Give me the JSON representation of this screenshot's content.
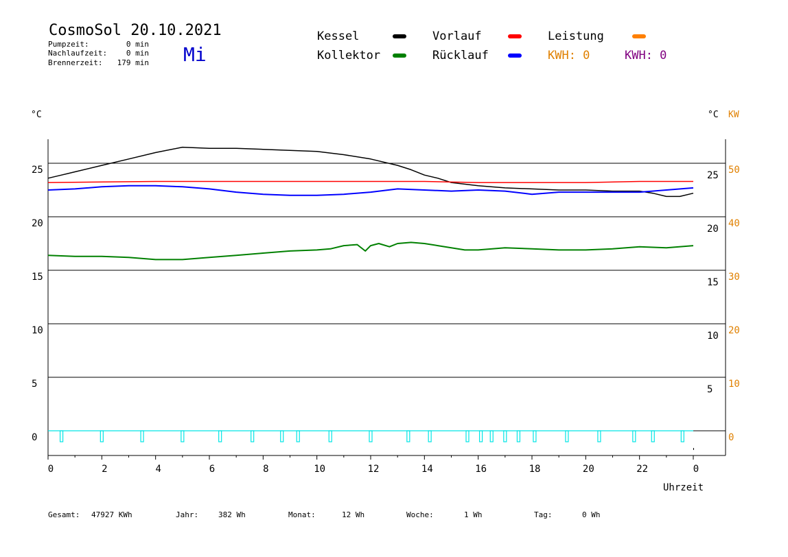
{
  "header": {
    "title": "CosmoSol 20.10.2021",
    "weekday": "Mi",
    "stats": [
      {
        "label": "Pumpzeit:",
        "value": "0 min"
      },
      {
        "label": "Nachlaufzeit:",
        "value": "0 min"
      },
      {
        "label": "Brennerzeit:",
        "value": "179 min"
      }
    ]
  },
  "legend": {
    "kessel": "Kessel",
    "vorlauf": "Vorlauf",
    "leistung": "Leistung",
    "kollektor": "Kollektor",
    "ruecklauf": "Rücklauf",
    "kwh_orange": "KWH: 0",
    "kwh_purple": "KWH: 0"
  },
  "colors": {
    "kessel": "#000000",
    "vorlauf": "#ff0000",
    "leistung": "#ff8000",
    "kollektor": "#008000",
    "ruecklauf": "#0000ff",
    "pump": "#00e5e5",
    "kwh_purple": "#800080",
    "right_kw": "#e08000"
  },
  "axes": {
    "left_unit": "°C",
    "right_unit_c": "°C",
    "right_unit_kw": "KW",
    "x_label": "Uhrzeit"
  },
  "footer": [
    {
      "label": "Gesamt:",
      "value": "47927 KWh"
    },
    {
      "label": "Jahr:",
      "value": "382 Wh"
    },
    {
      "label": "Monat:",
      "value": "12 Wh"
    },
    {
      "label": "Woche:",
      "value": "1 Wh"
    },
    {
      "label": "Tag:",
      "value": "0 Wh"
    }
  ],
  "chart_data": {
    "type": "line",
    "x_ticks": [
      "0",
      "2",
      "4",
      "6",
      "8",
      "10",
      "12",
      "14",
      "16",
      "18",
      "20",
      "22",
      "0"
    ],
    "x_range_hours": [
      0,
      24
    ],
    "y_left_ticks": [
      0,
      5,
      10,
      15,
      20,
      25
    ],
    "y_right_c_ticks": [
      5,
      10,
      15,
      20,
      25
    ],
    "y_right_kw_ticks": [
      0,
      10,
      20,
      30,
      40,
      50
    ],
    "ylim": [
      -2,
      27
    ],
    "grid": true,
    "series": [
      {
        "name": "Kessel",
        "key": "kessel",
        "x": [
          0,
          0.5,
          1,
          2,
          3,
          4,
          5,
          6,
          7,
          8,
          9,
          10,
          11,
          12,
          13,
          13.5,
          14,
          14.5,
          15,
          16,
          17,
          18,
          19,
          20,
          21,
          22,
          22.5,
          23,
          23.5,
          24
        ],
        "y": [
          23.6,
          23.9,
          24.2,
          24.8,
          25.4,
          26.0,
          26.5,
          26.4,
          26.4,
          26.3,
          26.2,
          26.1,
          25.8,
          25.4,
          24.8,
          24.4,
          23.9,
          23.6,
          23.2,
          22.9,
          22.7,
          22.6,
          22.5,
          22.5,
          22.4,
          22.4,
          22.2,
          21.9,
          21.9,
          22.2
        ]
      },
      {
        "name": "Vorlauf",
        "key": "vorlauf",
        "x": [
          0,
          4,
          8,
          12,
          14,
          16,
          18,
          20,
          22,
          24
        ],
        "y": [
          23.2,
          23.3,
          23.3,
          23.3,
          23.3,
          23.2,
          23.2,
          23.2,
          23.3,
          23.3
        ]
      },
      {
        "name": "Rücklauf",
        "key": "ruecklauf",
        "x": [
          0,
          1,
          2,
          3,
          4,
          5,
          6,
          7,
          8,
          9,
          10,
          11,
          12,
          13,
          14,
          15,
          16,
          17,
          18,
          19,
          20,
          21,
          22,
          23,
          24
        ],
        "y": [
          22.5,
          22.6,
          22.8,
          22.9,
          22.9,
          22.8,
          22.6,
          22.3,
          22.1,
          22.0,
          22.0,
          22.1,
          22.3,
          22.6,
          22.5,
          22.4,
          22.5,
          22.4,
          22.1,
          22.3,
          22.3,
          22.3,
          22.3,
          22.5,
          22.7
        ]
      },
      {
        "name": "Kollektor",
        "key": "kollektor",
        "x": [
          0,
          1,
          2,
          3,
          4,
          5,
          6,
          7,
          8,
          9,
          10,
          10.5,
          11,
          11.5,
          11.8,
          12,
          12.3,
          12.7,
          13,
          13.5,
          14,
          14.5,
          15,
          15.5,
          16,
          17,
          18,
          19,
          20,
          21,
          22,
          23,
          24
        ],
        "y": [
          16.4,
          16.3,
          16.3,
          16.2,
          16.0,
          16.0,
          16.2,
          16.4,
          16.6,
          16.8,
          16.9,
          17.0,
          17.3,
          17.4,
          16.8,
          17.3,
          17.5,
          17.2,
          17.5,
          17.6,
          17.5,
          17.3,
          17.1,
          16.9,
          16.9,
          17.1,
          17.0,
          16.9,
          16.9,
          17.0,
          17.2,
          17.1,
          17.3
        ]
      },
      {
        "name": "Pumpe",
        "key": "pump",
        "pulses_hours": [
          0.5,
          2.0,
          3.5,
          5.0,
          6.4,
          7.6,
          8.7,
          9.3,
          10.5,
          12.0,
          13.4,
          14.2,
          15.6,
          16.1,
          16.5,
          17.0,
          17.5,
          18.1,
          19.3,
          20.5,
          21.8,
          22.5,
          23.6
        ]
      }
    ]
  }
}
